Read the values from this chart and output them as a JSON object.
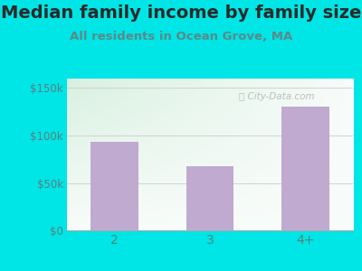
{
  "title": "Median family income by family size",
  "subtitle": "All residents in Ocean Grove, MA",
  "categories": [
    "2",
    "3",
    "4+"
  ],
  "values": [
    93000,
    68000,
    130000
  ],
  "bar_color": "#c0aad0",
  "outer_bg": "#00e5e5",
  "title_color": "#2a2a2a",
  "subtitle_color": "#5a8a8a",
  "axis_label_color": "#5a8080",
  "ytick_labels": [
    "$0",
    "$50k",
    "$100k",
    "$150k"
  ],
  "ytick_values": [
    0,
    50000,
    100000,
    150000
  ],
  "ylim": [
    0,
    160000
  ],
  "watermark": "Ⓜ City-Data.com",
  "title_fontsize": 14,
  "subtitle_fontsize": 9.5,
  "gradient_top": "#daf0e0",
  "gradient_bottom": "#f8fdfb"
}
